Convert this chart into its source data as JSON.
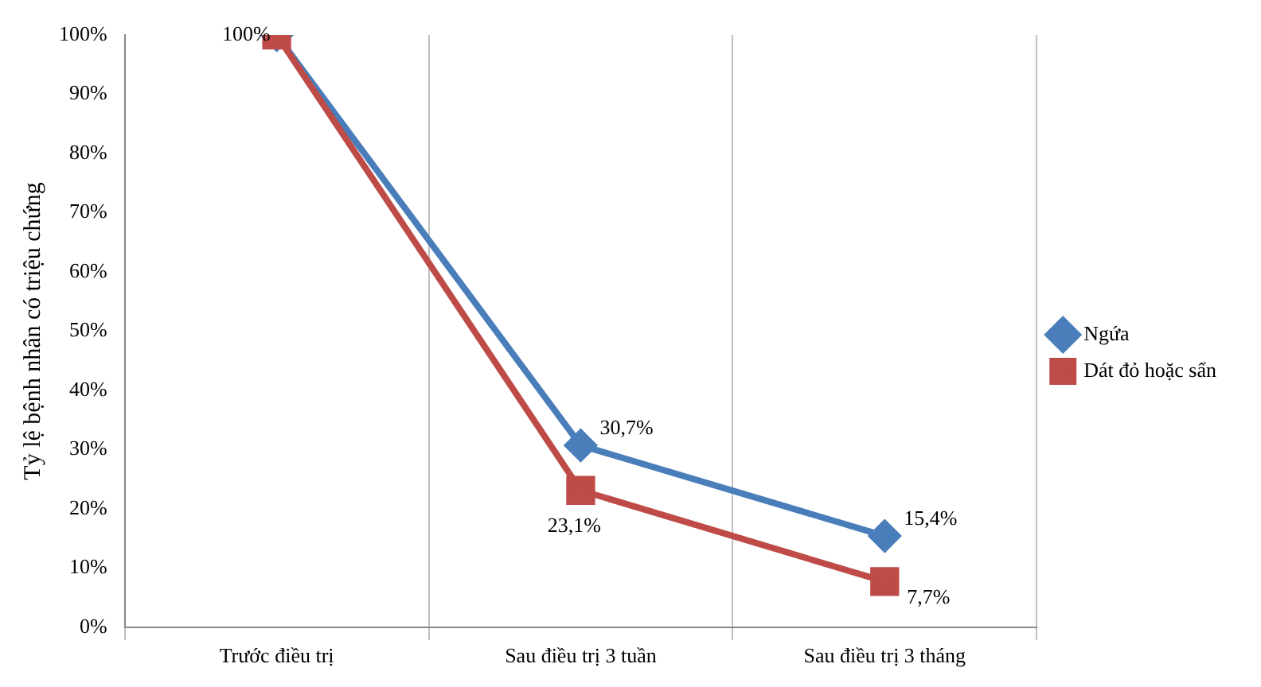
{
  "chart_data": {
    "type": "line",
    "ylabel": "Tỷ lệ bệnh nhân có triệu chứng",
    "categories": [
      "Trước điều trị",
      "Sau điều trị 3 tuần",
      "Sau điều trị 3 tháng"
    ],
    "series": [
      {
        "name": "Ngứa",
        "color": "#4a7ebb",
        "values": [
          100,
          30.7,
          15.4
        ],
        "marker": "diamond",
        "value_labels": [
          "100%",
          "30,7%",
          "15,4%"
        ]
      },
      {
        "name": "Dát đỏ hoặc sẩn",
        "color": "#be4b48",
        "values": [
          100,
          23.1,
          7.7
        ],
        "marker": "square",
        "value_labels": [
          null,
          "23,1%",
          "7,7%"
        ]
      }
    ],
    "ylim": [
      0,
      100
    ],
    "yticks": [
      {
        "value": 0,
        "label": "0%"
      },
      {
        "value": 10,
        "label": "10%"
      },
      {
        "value": 20,
        "label": "20%"
      },
      {
        "value": 30,
        "label": "30%"
      },
      {
        "value": 40,
        "label": "40%"
      },
      {
        "value": 50,
        "label": "50%"
      },
      {
        "value": 60,
        "label": "60%"
      },
      {
        "value": 70,
        "label": "70%"
      },
      {
        "value": 80,
        "label": "80%"
      },
      {
        "value": 90,
        "label": "90%"
      },
      {
        "value": 100,
        "label": "100%"
      }
    ],
    "grid": "x",
    "legend": "right",
    "line_style": "solid"
  }
}
